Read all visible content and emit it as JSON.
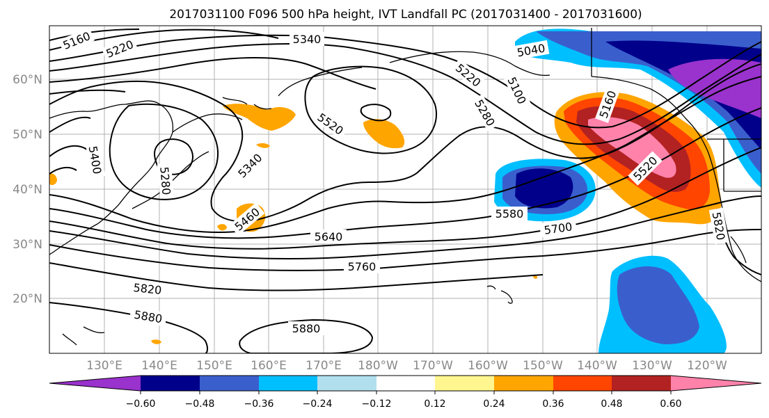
{
  "title": "2017031100 F096 500 hPa height, IVT Landfall PC (2017031400 - 2017031600)",
  "map": {
    "lon_labels": [
      "130°E",
      "140°E",
      "150°E",
      "160°E",
      "170°E",
      "180°W",
      "170°W",
      "160°W",
      "150°W",
      "140°W",
      "130°W",
      "120°W"
    ],
    "lat_labels": [
      "60°N",
      "50°N",
      "40°N",
      "30°N",
      "20°N"
    ],
    "contour_labels": [
      "5160",
      "5220",
      "5340",
      "5040",
      "5100",
      "5220",
      "5280",
      "5520",
      "5400",
      "5340",
      "5460",
      "5580",
      "5640",
      "5700",
      "5760",
      "5820",
      "5880",
      "5880",
      "5520",
      "5820",
      "5160",
      "5280"
    ]
  },
  "colorbar": {
    "colors": [
      "#9a32cd",
      "#00008b",
      "#3a5fcd",
      "#00bfff",
      "#b2dfee",
      "#ffffff",
      "#fff68f",
      "#ffa500",
      "#ff4500",
      "#b22222",
      "#ff82ab"
    ],
    "tick_labels": [
      "−0.60",
      "−0.48",
      "−0.36",
      "−0.24",
      "−0.12",
      "0.12",
      "0.24",
      "0.36",
      "0.48",
      "0.60"
    ]
  }
}
